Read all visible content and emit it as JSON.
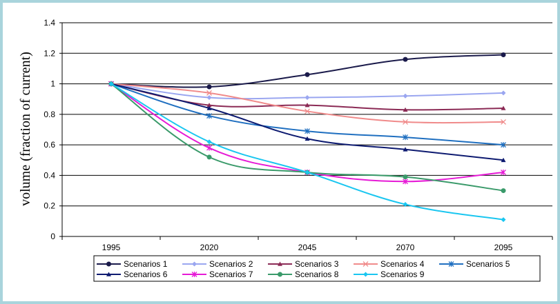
{
  "chart_data": {
    "type": "line",
    "title": "",
    "xlabel": "",
    "ylabel": "volume (fraction of current)",
    "categories": [
      "1995",
      "2020",
      "2045",
      "2070",
      "2095"
    ],
    "ylim": [
      0,
      1.4
    ],
    "yticks": [
      "0",
      "0.2",
      "0.4",
      "0.6",
      "0.8",
      "1",
      "1.2",
      "1.4"
    ],
    "grid": "horizontal",
    "legend_position": "bottom",
    "series": [
      {
        "name": "Scenarios 1",
        "color": "#1a1a4a",
        "marker": "circle",
        "values": [
          1.0,
          0.98,
          1.06,
          1.16,
          1.19
        ]
      },
      {
        "name": "Scenarios 2",
        "color": "#9aa6f0",
        "marker": "diamond",
        "values": [
          1.0,
          0.91,
          0.91,
          0.92,
          0.94
        ]
      },
      {
        "name": "Scenarios 3",
        "color": "#8b2a55",
        "marker": "triangle",
        "values": [
          1.0,
          0.86,
          0.86,
          0.83,
          0.84
        ]
      },
      {
        "name": "Scenarios 4",
        "color": "#f08a8a",
        "marker": "x",
        "values": [
          1.0,
          0.94,
          0.82,
          0.75,
          0.75
        ]
      },
      {
        "name": "Scenarios 5",
        "color": "#1f6fc0",
        "marker": "star",
        "values": [
          1.0,
          0.79,
          0.69,
          0.65,
          0.6
        ]
      },
      {
        "name": "Scenarios 6",
        "color": "#0d1a70",
        "marker": "triangle",
        "values": [
          1.0,
          0.84,
          0.64,
          0.57,
          0.5
        ]
      },
      {
        "name": "Scenarios 7",
        "color": "#e61ad6",
        "marker": "star",
        "values": [
          1.0,
          0.58,
          0.42,
          0.36,
          0.42
        ]
      },
      {
        "name": "Scenarios 8",
        "color": "#3a9a6a",
        "marker": "circle",
        "values": [
          1.0,
          0.52,
          0.42,
          0.39,
          0.3
        ]
      },
      {
        "name": "Scenarios 9",
        "color": "#1ac6f0",
        "marker": "diamond",
        "values": [
          1.0,
          0.62,
          0.42,
          0.21,
          0.11
        ]
      }
    ]
  }
}
